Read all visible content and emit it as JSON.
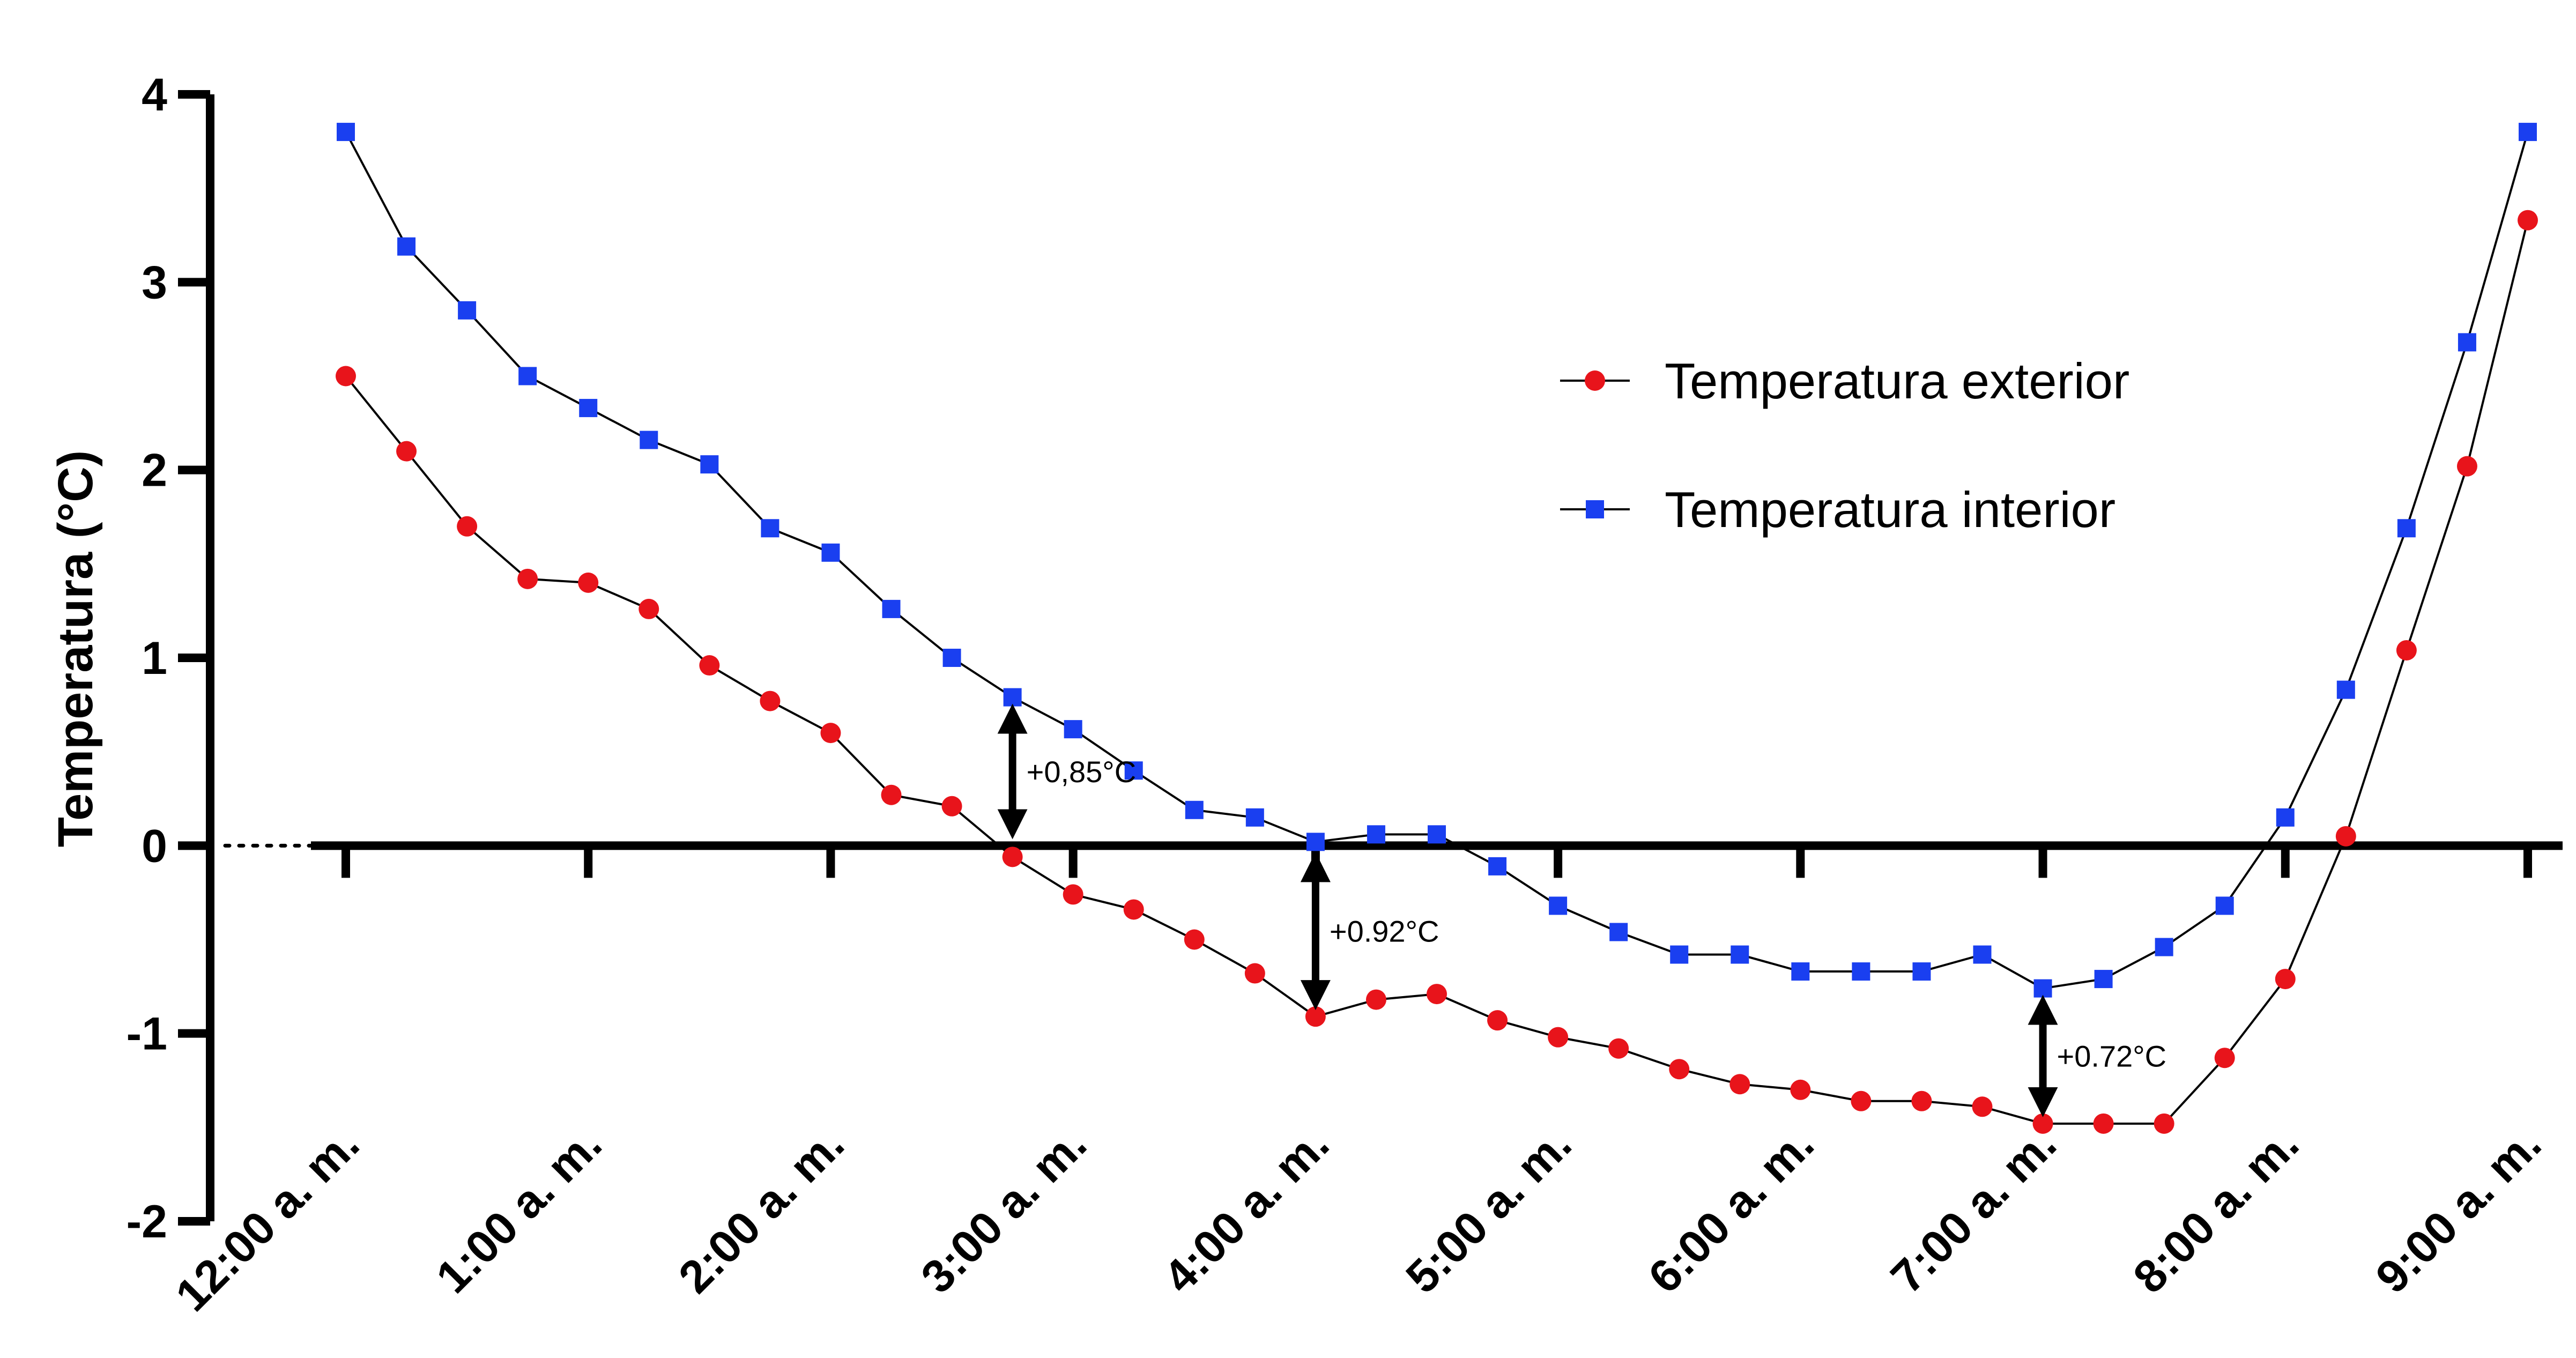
{
  "chart_data": {
    "type": "line",
    "title": "",
    "ylabel": "Temperatura (°C)",
    "xlabel": "",
    "ylim": [
      -2,
      4
    ],
    "yticks": [
      -2,
      -1,
      0,
      1,
      2,
      3,
      4
    ],
    "xlim": [
      0,
      540
    ],
    "xticks": [
      {
        "value": 0,
        "label": "12:00 a. m."
      },
      {
        "value": 60,
        "label": "1:00 a. m."
      },
      {
        "value": 120,
        "label": "2:00 a. m."
      },
      {
        "value": 180,
        "label": "3:00 a. m."
      },
      {
        "value": 240,
        "label": "4:00 a. m."
      },
      {
        "value": 300,
        "label": "5:00 a. m."
      },
      {
        "value": 360,
        "label": "6:00 a. m."
      },
      {
        "value": 420,
        "label": "7:00 a. m."
      },
      {
        "value": 480,
        "label": "8:00 a. m."
      },
      {
        "value": 540,
        "label": "9:00 a. m."
      }
    ],
    "x": [
      0,
      15,
      30,
      45,
      60,
      75,
      90,
      105,
      120,
      135,
      150,
      165,
      180,
      195,
      210,
      225,
      240,
      255,
      270,
      285,
      300,
      315,
      330,
      345,
      360,
      375,
      390,
      405,
      420,
      435,
      450,
      465,
      480,
      495,
      510,
      525,
      540
    ],
    "series": [
      {
        "name": "Temperatura exterior",
        "color": "#e8141b",
        "marker": "circle",
        "values": [
          2.5,
          2.1,
          1.7,
          1.42,
          1.4,
          1.26,
          0.96,
          0.77,
          0.6,
          0.27,
          0.21,
          -0.06,
          -0.26,
          -0.34,
          -0.5,
          -0.68,
          -0.91,
          -0.82,
          -0.79,
          -0.93,
          -1.02,
          -1.08,
          -1.19,
          -1.27,
          -1.3,
          -1.36,
          -1.36,
          -1.39,
          -1.48,
          -1.48,
          -1.48,
          -1.13,
          -0.71,
          0.05,
          1.04,
          2.02,
          3.33
        ]
      },
      {
        "name": "Temperatura interior",
        "color": "#1a3ff0",
        "marker": "square",
        "values": [
          3.8,
          3.19,
          2.85,
          2.5,
          2.33,
          2.16,
          2.03,
          1.69,
          1.56,
          1.26,
          1.0,
          0.79,
          0.62,
          0.4,
          0.19,
          0.15,
          0.02,
          0.06,
          0.06,
          -0.11,
          -0.32,
          -0.46,
          -0.58,
          -0.58,
          -0.67,
          -0.67,
          -0.67,
          -0.58,
          -0.76,
          -0.71,
          -0.54,
          -0.32,
          0.15,
          0.83,
          1.69,
          2.68,
          3.8
        ]
      }
    ],
    "legend_position": "top-right",
    "grid": false,
    "annotations": [
      {
        "x": 165,
        "y_top": 0.79,
        "y_bottom": 0.0,
        "label": "+0,85°C"
      },
      {
        "x": 240,
        "y_top": 0.0,
        "y_bottom": -0.91,
        "label": "+0.92°C"
      },
      {
        "x": 420,
        "y_top": -0.76,
        "y_bottom": -1.48,
        "label": "+0.72°C"
      }
    ]
  }
}
